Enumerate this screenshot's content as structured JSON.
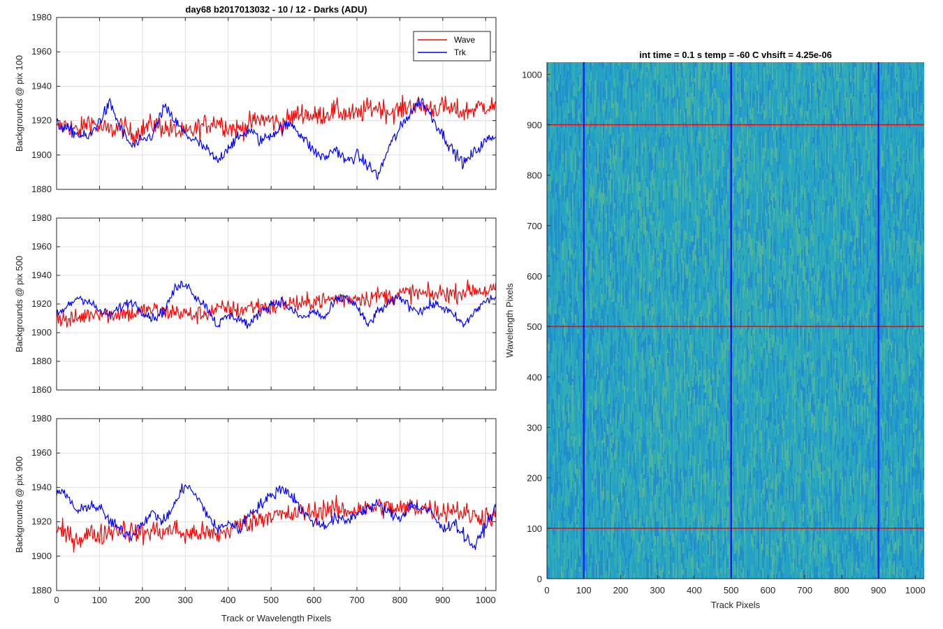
{
  "colors": {
    "wave": "#ff0000",
    "trk": "#0000ff",
    "grid": "#e0e0e0",
    "axis": "#262626"
  },
  "chart_data": [
    {
      "type": "line",
      "title": "day68 b2017013032 - 10 / 12 - Darks (ADU)",
      "ylabel": "Backgrounds @ pix 100",
      "xlabel": "",
      "xlim": [
        0,
        1024
      ],
      "ylim": [
        1880,
        1980
      ],
      "xticks": [
        0,
        100,
        200,
        300,
        400,
        500,
        600,
        700,
        800,
        900,
        1000
      ],
      "yticks": [
        1880,
        1900,
        1920,
        1940,
        1960,
        1980
      ],
      "grid": true,
      "legend": {
        "position": "top-right",
        "entries": [
          "Wave",
          "Trk"
        ]
      },
      "series": [
        {
          "name": "Wave",
          "color": "#ff0000",
          "x": [
            0,
            25,
            50,
            75,
            100,
            125,
            150,
            175,
            200,
            225,
            250,
            275,
            300,
            325,
            350,
            375,
            400,
            425,
            450,
            475,
            500,
            525,
            550,
            575,
            600,
            625,
            650,
            675,
            700,
            725,
            750,
            775,
            800,
            825,
            850,
            875,
            900,
            925,
            950,
            975,
            1000,
            1024
          ],
          "values": [
            1915,
            1918,
            1913,
            1920,
            1916,
            1914,
            1917,
            1912,
            1915,
            1918,
            1916,
            1914,
            1912,
            1915,
            1918,
            1920,
            1916,
            1915,
            1918,
            1921,
            1920,
            1918,
            1922,
            1925,
            1922,
            1924,
            1926,
            1924,
            1923,
            1927,
            1928,
            1925,
            1926,
            1929,
            1928,
            1927,
            1928,
            1926,
            1925,
            1927,
            1929,
            1928
          ]
        },
        {
          "name": "Trk",
          "color": "#0000ff",
          "x": [
            0,
            25,
            50,
            75,
            100,
            125,
            150,
            175,
            200,
            225,
            250,
            275,
            300,
            325,
            350,
            375,
            400,
            425,
            450,
            475,
            500,
            525,
            550,
            575,
            600,
            625,
            650,
            675,
            700,
            725,
            750,
            775,
            800,
            825,
            850,
            875,
            900,
            925,
            950,
            975,
            1000,
            1024
          ],
          "values": [
            1918,
            1915,
            1912,
            1910,
            1920,
            1930,
            1915,
            1905,
            1908,
            1912,
            1928,
            1920,
            1912,
            1908,
            1903,
            1896,
            1905,
            1910,
            1915,
            1908,
            1912,
            1916,
            1918,
            1910,
            1902,
            1898,
            1904,
            1896,
            1900,
            1894,
            1888,
            1905,
            1915,
            1925,
            1932,
            1922,
            1912,
            1902,
            1895,
            1902,
            1908,
            1912
          ]
        }
      ]
    },
    {
      "type": "line",
      "title": "",
      "ylabel": "Backgrounds @ pix 500",
      "xlabel": "",
      "xlim": [
        0,
        1024
      ],
      "ylim": [
        1860,
        1980
      ],
      "xticks": [
        0,
        100,
        200,
        300,
        400,
        500,
        600,
        700,
        800,
        900,
        1000
      ],
      "yticks": [
        1860,
        1880,
        1900,
        1920,
        1940,
        1960,
        1980
      ],
      "grid": true,
      "series": [
        {
          "name": "Wave",
          "color": "#ff0000",
          "x": [
            0,
            25,
            50,
            75,
            100,
            125,
            150,
            175,
            200,
            225,
            250,
            275,
            300,
            325,
            350,
            375,
            400,
            425,
            450,
            475,
            500,
            525,
            550,
            575,
            600,
            625,
            650,
            675,
            700,
            725,
            750,
            775,
            800,
            825,
            850,
            875,
            900,
            925,
            950,
            975,
            1000,
            1024
          ],
          "values": [
            1912,
            1908,
            1910,
            1913,
            1915,
            1912,
            1914,
            1913,
            1915,
            1916,
            1914,
            1915,
            1913,
            1912,
            1914,
            1916,
            1917,
            1915,
            1918,
            1919,
            1917,
            1920,
            1921,
            1919,
            1923,
            1922,
            1924,
            1923,
            1925,
            1924,
            1926,
            1925,
            1927,
            1928,
            1927,
            1926,
            1928,
            1927,
            1929,
            1930,
            1929,
            1930
          ]
        },
        {
          "name": "Trk",
          "color": "#0000ff",
          "x": [
            0,
            25,
            50,
            75,
            100,
            125,
            150,
            175,
            200,
            225,
            250,
            275,
            300,
            325,
            350,
            375,
            400,
            425,
            450,
            475,
            500,
            525,
            550,
            575,
            600,
            625,
            650,
            675,
            700,
            725,
            750,
            775,
            800,
            825,
            850,
            875,
            900,
            925,
            950,
            975,
            1000,
            1024
          ],
          "values": [
            1912,
            1918,
            1925,
            1922,
            1915,
            1912,
            1918,
            1922,
            1915,
            1910,
            1915,
            1930,
            1935,
            1925,
            1918,
            1905,
            1912,
            1910,
            1905,
            1915,
            1920,
            1922,
            1915,
            1910,
            1915,
            1910,
            1922,
            1925,
            1918,
            1905,
            1915,
            1920,
            1925,
            1918,
            1915,
            1920,
            1918,
            1912,
            1905,
            1915,
            1922,
            1925
          ]
        }
      ]
    },
    {
      "type": "line",
      "title": "",
      "ylabel": "Backgrounds @ pix 900",
      "xlabel": "Track or Wavelength Pixels",
      "xlim": [
        0,
        1024
      ],
      "ylim": [
        1880,
        1980
      ],
      "xticks": [
        0,
        100,
        200,
        300,
        400,
        500,
        600,
        700,
        800,
        900,
        1000
      ],
      "yticks": [
        1880,
        1900,
        1920,
        1940,
        1960,
        1980
      ],
      "grid": true,
      "series": [
        {
          "name": "Wave",
          "color": "#ff0000",
          "x": [
            0,
            25,
            50,
            75,
            100,
            125,
            150,
            175,
            200,
            225,
            250,
            275,
            300,
            325,
            350,
            375,
            400,
            425,
            450,
            475,
            500,
            525,
            550,
            575,
            600,
            625,
            650,
            675,
            700,
            725,
            750,
            775,
            800,
            825,
            850,
            875,
            900,
            925,
            950,
            975,
            1000,
            1024
          ],
          "values": [
            1915,
            1912,
            1910,
            1913,
            1912,
            1915,
            1916,
            1914,
            1913,
            1915,
            1914,
            1916,
            1912,
            1914,
            1913,
            1912,
            1915,
            1918,
            1920,
            1922,
            1925,
            1923,
            1924,
            1926,
            1925,
            1928,
            1927,
            1926,
            1928,
            1927,
            1929,
            1928,
            1927,
            1928,
            1929,
            1927,
            1926,
            1928,
            1925,
            1923,
            1924,
            1922
          ]
        },
        {
          "name": "Trk",
          "color": "#0000ff",
          "x": [
            0,
            25,
            50,
            75,
            100,
            125,
            150,
            175,
            200,
            225,
            250,
            275,
            300,
            325,
            350,
            375,
            400,
            425,
            450,
            475,
            500,
            525,
            550,
            575,
            600,
            625,
            650,
            675,
            700,
            725,
            750,
            775,
            800,
            825,
            850,
            875,
            900,
            925,
            950,
            975,
            1000,
            1024
          ],
          "values": [
            1938,
            1935,
            1925,
            1930,
            1928,
            1920,
            1915,
            1912,
            1920,
            1925,
            1920,
            1930,
            1942,
            1935,
            1925,
            1915,
            1920,
            1915,
            1925,
            1930,
            1935,
            1940,
            1935,
            1925,
            1920,
            1918,
            1922,
            1920,
            1925,
            1928,
            1930,
            1925,
            1922,
            1930,
            1928,
            1925,
            1915,
            1920,
            1912,
            1905,
            1918,
            1928
          ]
        }
      ]
    },
    {
      "type": "heatmap",
      "title": "int time = 0.1 s   temp = -60 C   vhsift = 4.25e-06",
      "xlabel": "Track Pixels",
      "ylabel": "Wavelength Pixels",
      "xlim": [
        0,
        1024
      ],
      "ylim": [
        0,
        1024
      ],
      "xticks": [
        0,
        100,
        200,
        300,
        400,
        500,
        600,
        700,
        800,
        900,
        1000
      ],
      "yticks": [
        0,
        100,
        200,
        300,
        400,
        500,
        600,
        700,
        800,
        900,
        1000
      ],
      "vertical_markers": {
        "x": [
          100,
          500,
          900
        ],
        "color": "#0000ff"
      },
      "horizontal_markers": {
        "y": [
          100,
          500,
          900
        ],
        "color": "#ff0000"
      },
      "colormap": [
        "#1f7fcf",
        "#22a3c4",
        "#3cb6a5",
        "#6ec27c"
      ]
    }
  ]
}
